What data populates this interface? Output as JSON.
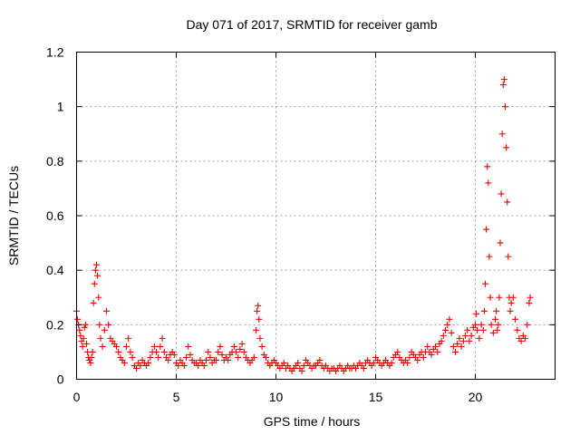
{
  "chart_data": {
    "type": "scatter",
    "title": "Day 071 of 2017, SRMTID for receiver gamb",
    "xlabel": "GPS time / hours",
    "ylabel": "SRMTID / TECUs",
    "xlim": [
      0,
      24
    ],
    "ylim": [
      0,
      1.2
    ],
    "xticks": [
      0,
      5,
      10,
      15,
      20
    ],
    "xtick_labels": [
      "0",
      "5",
      "10",
      "15",
      "20"
    ],
    "yticks": [
      0,
      0.2,
      0.4,
      0.6,
      0.8,
      1.0,
      1.2
    ],
    "ytick_labels": [
      "0",
      "0.2",
      "0.4",
      "0.6",
      "0.8",
      "1",
      "1.2"
    ],
    "grid": true,
    "marker": "+",
    "color": "#ee0000",
    "series": [
      {
        "name": "SRMTID",
        "points": [
          [
            0.0,
            0.25
          ],
          [
            0.05,
            0.22
          ],
          [
            0.1,
            0.2
          ],
          [
            0.15,
            0.18
          ],
          [
            0.2,
            0.16
          ],
          [
            0.25,
            0.14
          ],
          [
            0.3,
            0.12
          ],
          [
            0.35,
            0.15
          ],
          [
            0.4,
            0.19
          ],
          [
            0.45,
            0.2
          ],
          [
            0.5,
            0.13
          ],
          [
            0.55,
            0.1
          ],
          [
            0.6,
            0.08
          ],
          [
            0.65,
            0.07
          ],
          [
            0.7,
            0.06
          ],
          [
            0.75,
            0.08
          ],
          [
            0.8,
            0.1
          ],
          [
            0.85,
            0.28
          ],
          [
            0.9,
            0.35
          ],
          [
            0.95,
            0.4
          ],
          [
            1.0,
            0.42
          ],
          [
            1.05,
            0.38
          ],
          [
            1.1,
            0.3
          ],
          [
            1.15,
            0.2
          ],
          [
            1.2,
            0.15
          ],
          [
            1.3,
            0.12
          ],
          [
            1.4,
            0.18
          ],
          [
            1.5,
            0.25
          ],
          [
            1.6,
            0.2
          ],
          [
            1.7,
            0.15
          ],
          [
            1.8,
            0.14
          ],
          [
            1.9,
            0.13
          ],
          [
            2.0,
            0.12
          ],
          [
            2.1,
            0.1
          ],
          [
            2.2,
            0.08
          ],
          [
            2.3,
            0.07
          ],
          [
            2.4,
            0.06
          ],
          [
            2.5,
            0.12
          ],
          [
            2.6,
            0.15
          ],
          [
            2.7,
            0.1
          ],
          [
            2.8,
            0.08
          ],
          [
            2.9,
            0.05
          ],
          [
            3.0,
            0.04
          ],
          [
            3.1,
            0.06
          ],
          [
            3.2,
            0.05
          ],
          [
            3.3,
            0.07
          ],
          [
            3.4,
            0.06
          ],
          [
            3.5,
            0.05
          ],
          [
            3.6,
            0.06
          ],
          [
            3.7,
            0.08
          ],
          [
            3.8,
            0.1
          ],
          [
            3.9,
            0.12
          ],
          [
            4.0,
            0.1
          ],
          [
            4.1,
            0.08
          ],
          [
            4.2,
            0.12
          ],
          [
            4.3,
            0.15
          ],
          [
            4.4,
            0.1
          ],
          [
            4.5,
            0.08
          ],
          [
            4.6,
            0.07
          ],
          [
            4.7,
            0.09
          ],
          [
            4.8,
            0.1
          ],
          [
            4.9,
            0.09
          ],
          [
            5.0,
            0.06
          ],
          [
            5.1,
            0.05
          ],
          [
            5.2,
            0.07
          ],
          [
            5.3,
            0.06
          ],
          [
            5.4,
            0.05
          ],
          [
            5.5,
            0.08
          ],
          [
            5.6,
            0.12
          ],
          [
            5.7,
            0.09
          ],
          [
            5.8,
            0.07
          ],
          [
            5.9,
            0.06
          ],
          [
            6.0,
            0.06
          ],
          [
            6.1,
            0.05
          ],
          [
            6.2,
            0.07
          ],
          [
            6.3,
            0.06
          ],
          [
            6.4,
            0.05
          ],
          [
            6.5,
            0.07
          ],
          [
            6.6,
            0.1
          ],
          [
            6.7,
            0.08
          ],
          [
            6.8,
            0.06
          ],
          [
            6.9,
            0.07
          ],
          [
            7.0,
            0.07
          ],
          [
            7.1,
            0.1
          ],
          [
            7.2,
            0.12
          ],
          [
            7.3,
            0.09
          ],
          [
            7.4,
            0.07
          ],
          [
            7.5,
            0.08
          ],
          [
            7.6,
            0.07
          ],
          [
            7.7,
            0.09
          ],
          [
            7.8,
            0.1
          ],
          [
            7.9,
            0.12
          ],
          [
            8.0,
            0.1
          ],
          [
            8.1,
            0.08
          ],
          [
            8.2,
            0.11
          ],
          [
            8.3,
            0.13
          ],
          [
            8.4,
            0.1
          ],
          [
            8.5,
            0.08
          ],
          [
            8.6,
            0.07
          ],
          [
            8.7,
            0.06
          ],
          [
            8.8,
            0.07
          ],
          [
            8.9,
            0.08
          ],
          [
            9.0,
            0.18
          ],
          [
            9.05,
            0.25
          ],
          [
            9.1,
            0.27
          ],
          [
            9.15,
            0.22
          ],
          [
            9.2,
            0.15
          ],
          [
            9.3,
            0.12
          ],
          [
            9.4,
            0.09
          ],
          [
            9.5,
            0.08
          ],
          [
            9.6,
            0.06
          ],
          [
            9.7,
            0.05
          ],
          [
            9.8,
            0.06
          ],
          [
            9.9,
            0.07
          ],
          [
            10.0,
            0.06
          ],
          [
            10.1,
            0.05
          ],
          [
            10.2,
            0.04
          ],
          [
            10.3,
            0.05
          ],
          [
            10.4,
            0.06
          ],
          [
            10.5,
            0.04
          ],
          [
            10.6,
            0.05
          ],
          [
            10.7,
            0.04
          ],
          [
            10.8,
            0.03
          ],
          [
            10.9,
            0.04
          ],
          [
            11.0,
            0.05
          ],
          [
            11.1,
            0.06
          ],
          [
            11.2,
            0.04
          ],
          [
            11.3,
            0.03
          ],
          [
            11.4,
            0.05
          ],
          [
            11.5,
            0.07
          ],
          [
            11.6,
            0.06
          ],
          [
            11.7,
            0.05
          ],
          [
            11.8,
            0.04
          ],
          [
            11.9,
            0.05
          ],
          [
            12.0,
            0.05
          ],
          [
            12.1,
            0.06
          ],
          [
            12.2,
            0.07
          ],
          [
            12.3,
            0.05
          ],
          [
            12.4,
            0.04
          ],
          [
            12.5,
            0.05
          ],
          [
            12.6,
            0.04
          ],
          [
            12.7,
            0.03
          ],
          [
            12.8,
            0.04
          ],
          [
            12.9,
            0.04
          ],
          [
            13.0,
            0.03
          ],
          [
            13.1,
            0.04
          ],
          [
            13.2,
            0.05
          ],
          [
            13.3,
            0.04
          ],
          [
            13.4,
            0.03
          ],
          [
            13.5,
            0.04
          ],
          [
            13.6,
            0.05
          ],
          [
            13.7,
            0.04
          ],
          [
            13.8,
            0.04
          ],
          [
            13.9,
            0.05
          ],
          [
            14.0,
            0.04
          ],
          [
            14.1,
            0.05
          ],
          [
            14.2,
            0.06
          ],
          [
            14.3,
            0.05
          ],
          [
            14.4,
            0.04
          ],
          [
            14.5,
            0.06
          ],
          [
            14.6,
            0.07
          ],
          [
            14.7,
            0.06
          ],
          [
            14.8,
            0.05
          ],
          [
            14.9,
            0.06
          ],
          [
            15.0,
            0.08
          ],
          [
            15.1,
            0.07
          ],
          [
            15.2,
            0.06
          ],
          [
            15.3,
            0.05
          ],
          [
            15.4,
            0.06
          ],
          [
            15.5,
            0.07
          ],
          [
            15.6,
            0.06
          ],
          [
            15.7,
            0.05
          ],
          [
            15.8,
            0.06
          ],
          [
            15.9,
            0.08
          ],
          [
            16.0,
            0.09
          ],
          [
            16.1,
            0.1
          ],
          [
            16.2,
            0.08
          ],
          [
            16.3,
            0.07
          ],
          [
            16.4,
            0.06
          ],
          [
            16.5,
            0.07
          ],
          [
            16.6,
            0.06
          ],
          [
            16.7,
            0.08
          ],
          [
            16.8,
            0.1
          ],
          [
            16.9,
            0.09
          ],
          [
            17.0,
            0.08
          ],
          [
            17.1,
            0.07
          ],
          [
            17.2,
            0.09
          ],
          [
            17.3,
            0.1
          ],
          [
            17.4,
            0.08
          ],
          [
            17.5,
            0.1
          ],
          [
            17.6,
            0.12
          ],
          [
            17.7,
            0.1
          ],
          [
            17.8,
            0.09
          ],
          [
            17.9,
            0.11
          ],
          [
            18.0,
            0.12
          ],
          [
            18.1,
            0.1
          ],
          [
            18.2,
            0.13
          ],
          [
            18.3,
            0.14
          ],
          [
            18.4,
            0.16
          ],
          [
            18.5,
            0.18
          ],
          [
            18.6,
            0.2
          ],
          [
            18.7,
            0.22
          ],
          [
            18.8,
            0.17
          ],
          [
            18.9,
            0.12
          ],
          [
            19.0,
            0.1
          ],
          [
            19.1,
            0.13
          ],
          [
            19.2,
            0.15
          ],
          [
            19.3,
            0.12
          ],
          [
            19.4,
            0.14
          ],
          [
            19.5,
            0.16
          ],
          [
            19.6,
            0.18
          ],
          [
            19.7,
            0.14
          ],
          [
            19.8,
            0.16
          ],
          [
            19.9,
            0.19
          ],
          [
            20.0,
            0.2
          ],
          [
            20.05,
            0.24
          ],
          [
            20.1,
            0.18
          ],
          [
            20.2,
            0.15
          ],
          [
            20.3,
            0.2
          ],
          [
            20.4,
            0.18
          ],
          [
            20.45,
            0.25
          ],
          [
            20.5,
            0.35
          ],
          [
            20.55,
            0.55
          ],
          [
            20.6,
            0.78
          ],
          [
            20.65,
            0.72
          ],
          [
            20.7,
            0.45
          ],
          [
            20.75,
            0.3
          ],
          [
            20.8,
            0.2
          ],
          [
            20.9,
            0.17
          ],
          [
            21.0,
            0.22
          ],
          [
            21.05,
            0.25
          ],
          [
            21.1,
            0.18
          ],
          [
            21.15,
            0.2
          ],
          [
            21.2,
            0.3
          ],
          [
            21.25,
            0.5
          ],
          [
            21.3,
            0.68
          ],
          [
            21.35,
            0.9
          ],
          [
            21.4,
            1.08
          ],
          [
            21.45,
            1.1
          ],
          [
            21.5,
            1.0
          ],
          [
            21.55,
            0.85
          ],
          [
            21.6,
            0.65
          ],
          [
            21.65,
            0.45
          ],
          [
            21.7,
            0.3
          ],
          [
            21.75,
            0.25
          ],
          [
            21.8,
            0.28
          ],
          [
            21.9,
            0.3
          ],
          [
            22.0,
            0.22
          ],
          [
            22.1,
            0.18
          ],
          [
            22.2,
            0.15
          ],
          [
            22.3,
            0.14
          ],
          [
            22.4,
            0.16
          ],
          [
            22.5,
            0.15
          ],
          [
            22.6,
            0.2
          ],
          [
            22.7,
            0.28
          ],
          [
            22.75,
            0.3
          ]
        ]
      }
    ]
  }
}
